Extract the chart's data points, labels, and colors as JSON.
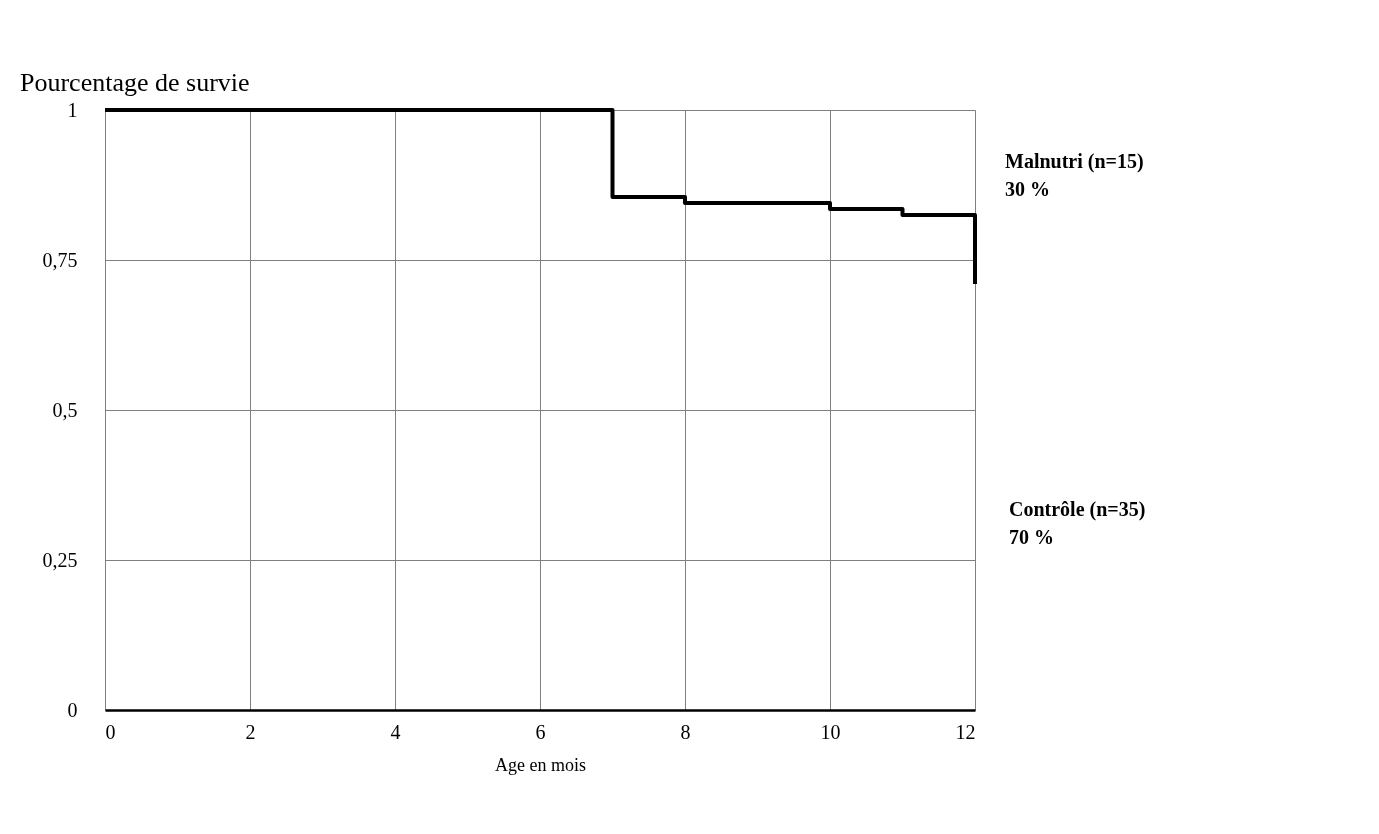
{
  "chart_data": {
    "type": "step",
    "ylabel": "Pourcentage de survie",
    "xlabel": "Age en mois",
    "x": [
      0,
      7,
      8,
      10,
      11,
      12,
      12
    ],
    "series": [
      {
        "color": "#000000",
        "values": [
          1,
          0.855,
          0.845,
          0.835,
          0.825,
          0.825,
          0.71
        ]
      }
    ],
    "xlim": [
      0,
      12
    ],
    "xticks": [
      0,
      2,
      4,
      6,
      8,
      10,
      12
    ],
    "ylim": [
      0,
      1
    ],
    "yticks": [
      0,
      {
        "value": 0.25,
        "label": "0,25"
      },
      {
        "value": 0.5,
        "label": "0,5"
      },
      {
        "value": 0.75,
        "label": "0,75"
      },
      1
    ],
    "grid": true,
    "line_style": "solid",
    "marker": "none",
    "annotations": [
      "Malnutri (n=15)",
      "30 %",
      "Contrôle (n=35)",
      "70 %"
    ]
  }
}
